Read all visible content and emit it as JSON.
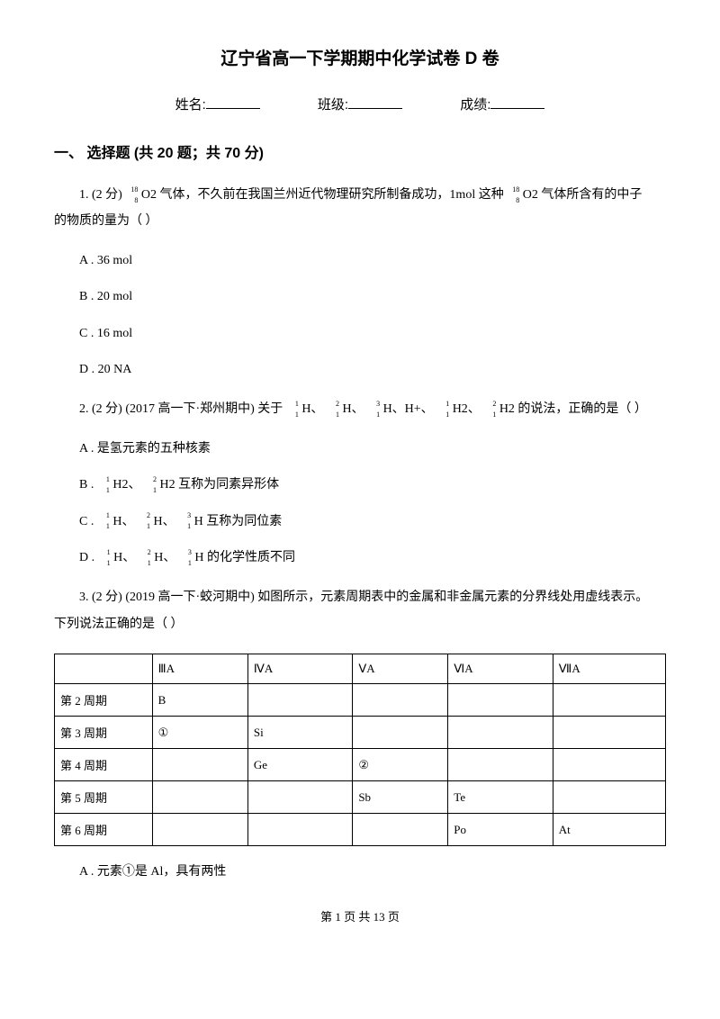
{
  "title": "辽宁省高一下学期期中化学试卷 D 卷",
  "headerFields": {
    "nameLabel": "姓名:",
    "classLabel": "班级:",
    "scoreLabel": "成绩:"
  },
  "section1": {
    "heading": "一、 选择题 (共 20 题；共 70 分)"
  },
  "q1": {
    "prefix": "1.  (2 分) ",
    "nuclide": {
      "mass": "18",
      "atomic": "8"
    },
    "mid1": " O2 气体，不久前在我国兰州近代物理研究所制备成功，1mol 这种 ",
    "mid2": " O2 气体所含有的中子",
    "line2": "的物质的量为（    ）",
    "options": {
      "A": "A . 36 mol",
      "B": "B . 20 mol",
      "C": "C . 16 mol",
      "D": "D . 20 NA"
    }
  },
  "q2": {
    "prefix": "2.  (2 分)  (2017 高一下·郑州期中) 关于 ",
    "n11": {
      "mass": "1",
      "atomic": "1"
    },
    "n21": {
      "mass": "2",
      "atomic": "1"
    },
    "n31": {
      "mass": "3",
      "atomic": "1"
    },
    "t_H": " H、 ",
    "t_Hplus": " H、H+、 ",
    "t_H2a": " H2、 ",
    "t_H2end": " H2 的说法，正确的是（    ）",
    "optA": "A . 是氢元素的五种核素",
    "optB_pre": "B . ",
    "optB_mid": " H2、 ",
    "optB_end": " H2 互称为同素异形体",
    "optC_pre": "C . ",
    "optC_mid1": " H、 ",
    "optC_mid2": " H、 ",
    "optC_end": " H 互称为同位素",
    "optD_pre": "D . ",
    "optD_mid1": " H、 ",
    "optD_mid2": " H、 ",
    "optD_end": " H 的化学性质不同"
  },
  "q3": {
    "prefix": "3.  (2 分)  (2019 高一下·蛟河期中) 如图所示，元素周期表中的金属和非金属元素的分界线处用虚线表示。",
    "line2": "下列说法正确的是（    ）",
    "table": {
      "headers": [
        "",
        "ⅢA",
        "ⅣA",
        "ⅤA",
        "ⅥA",
        "ⅦA"
      ],
      "rows": [
        [
          "第 2 周期",
          "B",
          "",
          "",
          "",
          ""
        ],
        [
          "第 3 周期",
          "①",
          "Si",
          "",
          "",
          ""
        ],
        [
          "第 4 周期",
          "",
          "Ge",
          "②",
          "",
          ""
        ],
        [
          "第 5 周期",
          "",
          "",
          "Sb",
          "Te",
          ""
        ],
        [
          "第 6 周期",
          "",
          "",
          "",
          "Po",
          "At"
        ]
      ]
    },
    "optA": "A . 元素①是 Al，具有两性"
  },
  "footer": "第 1 页 共 13 页"
}
